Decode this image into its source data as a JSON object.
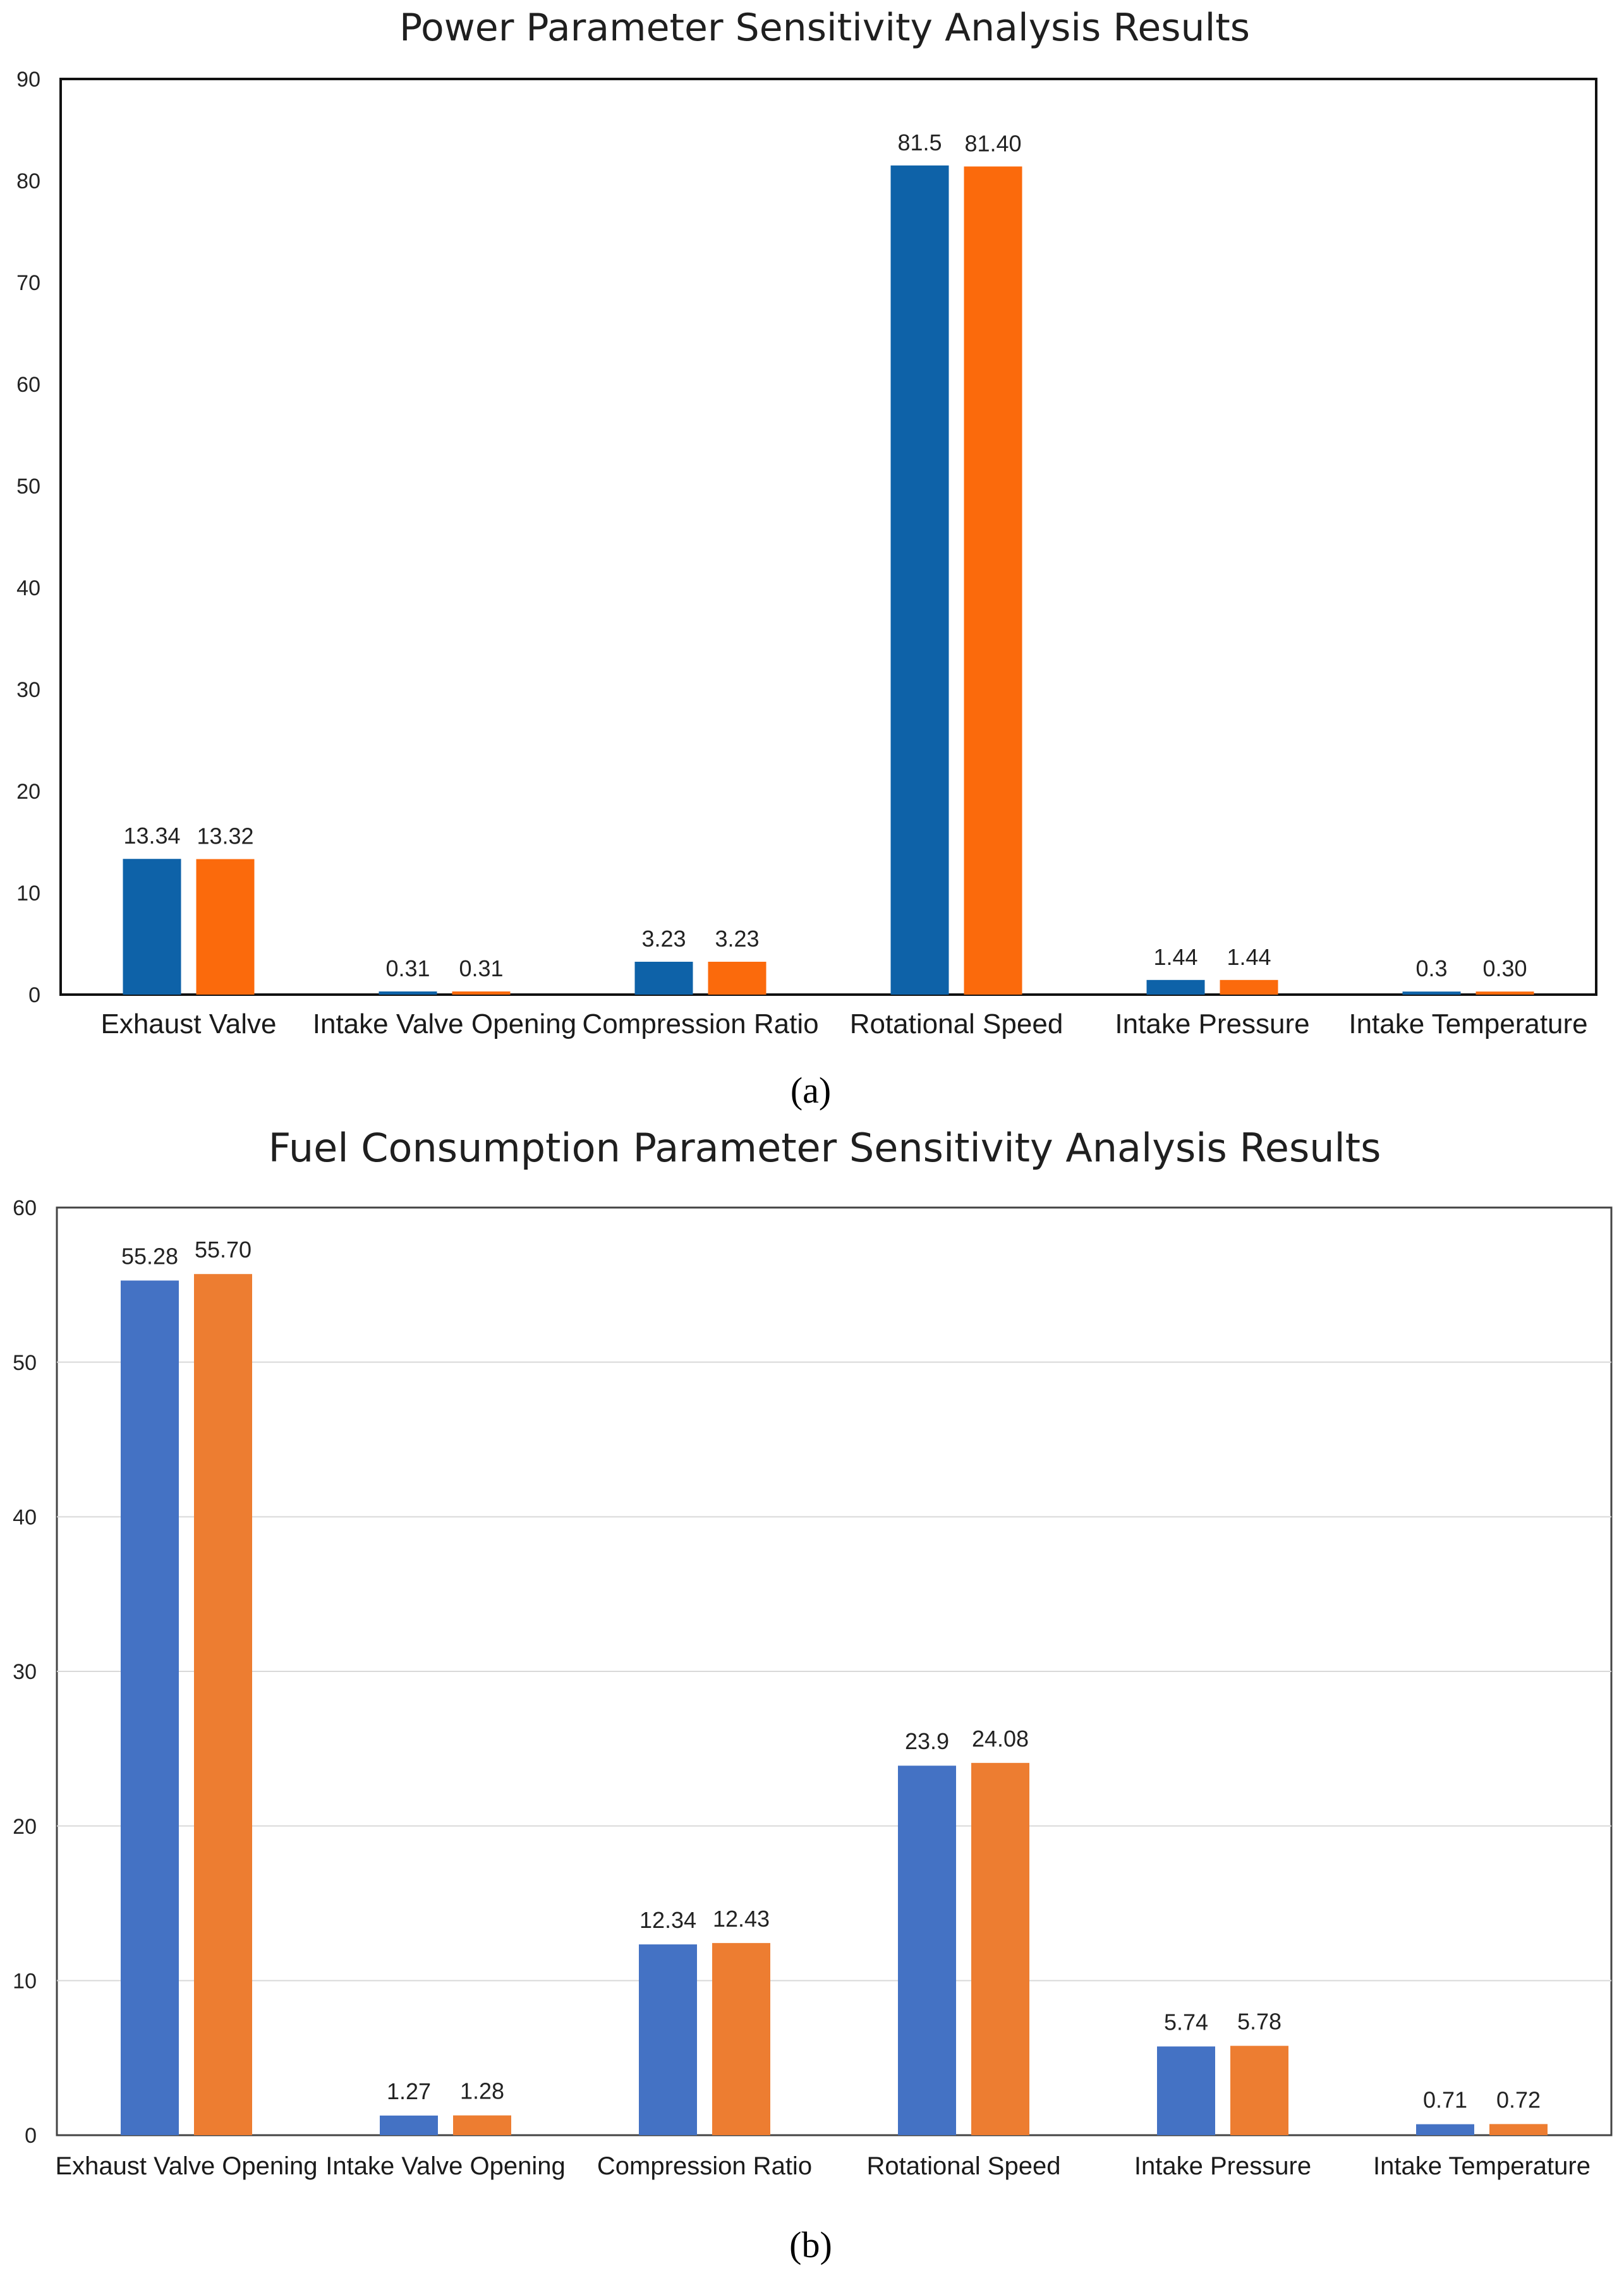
{
  "figure": {
    "panel_a_label": "(a)",
    "panel_b_label": "(b)"
  },
  "chart_data": [
    {
      "type": "bar",
      "title": "Power Parameter Sensitivity Analysis Results",
      "xlabel": "",
      "ylabel": "",
      "ylim": [
        0,
        90
      ],
      "yticks": [
        0,
        10,
        20,
        30,
        40,
        50,
        60,
        70,
        80,
        90
      ],
      "grid": false,
      "legend": "none",
      "categories": [
        "Exhaust Valve",
        "Intake Valve Opening",
        "Compression Ratio",
        "Rotational Speed",
        "Intake Pressure",
        "Intake Temperature"
      ],
      "series": [
        {
          "values": [
            13.34,
            0.31,
            3.23,
            81.5,
            1.44,
            0.3
          ],
          "labels": [
            "13.34",
            "0.31",
            "3.23",
            "81.5",
            "1.44",
            "0.3"
          ],
          "color": "#0e62a8"
        },
        {
          "values": [
            13.32,
            0.31,
            3.23,
            81.4,
            1.44,
            0.3
          ],
          "labels": [
            "13.32",
            "0.31",
            "3.23",
            "81.40",
            "1.44",
            "0.30"
          ],
          "color": "#fb6a0c"
        }
      ]
    },
    {
      "type": "bar",
      "title": "Fuel Consumption Parameter Sensitivity Analysis Results",
      "xlabel": "",
      "ylabel": "",
      "ylim": [
        0,
        60
      ],
      "yticks": [
        0,
        10,
        20,
        30,
        40,
        50,
        60
      ],
      "grid": true,
      "legend": "none",
      "categories": [
        "Exhaust Valve Opening",
        "Intake Valve Opening",
        "Compression Ratio",
        "Rotational Speed",
        "Intake Pressure",
        "Intake Temperature"
      ],
      "series": [
        {
          "values": [
            55.28,
            1.27,
            12.34,
            23.9,
            5.74,
            0.71
          ],
          "labels": [
            "55.28",
            "1.27",
            "12.34",
            "23.9",
            "5.74",
            "0.71"
          ],
          "color": "#4472c4"
        },
        {
          "values": [
            55.7,
            1.28,
            12.43,
            24.08,
            5.78,
            0.72
          ],
          "labels": [
            "55.70",
            "1.28",
            "12.43",
            "24.08",
            "5.78",
            "0.72"
          ],
          "color": "#ed7d31"
        }
      ]
    }
  ]
}
